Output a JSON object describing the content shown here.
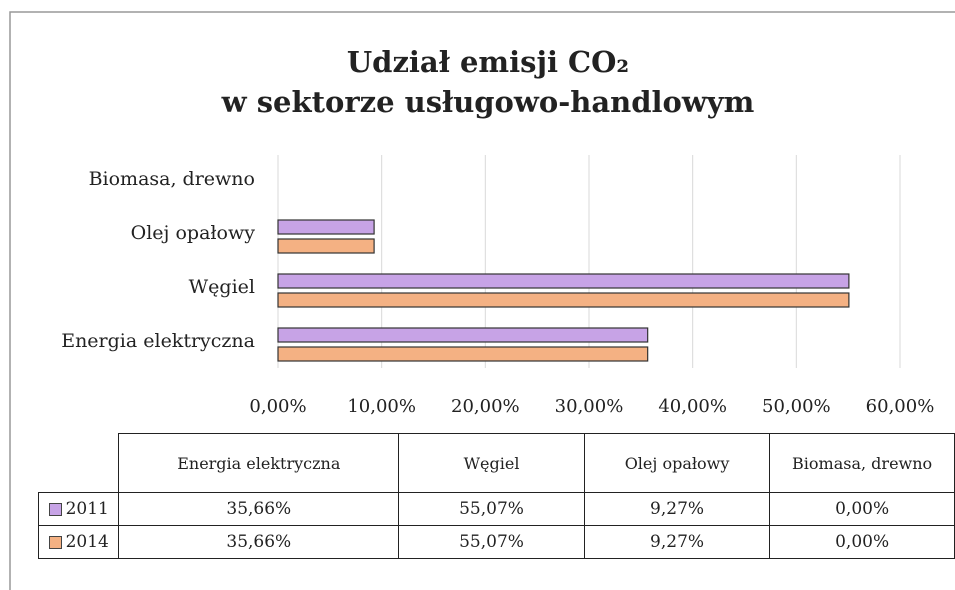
{
  "chart_data": {
    "type": "barh",
    "title": [
      "Udział emisji CO₂",
      "w sektorze usługowo-handlowym"
    ],
    "categories": [
      "Energia elektryczna",
      "Węgiel",
      "Olej opałowy",
      "Biomasa, drewno"
    ],
    "series": [
      {
        "name": "2011",
        "color": "#c7a3e6",
        "values": [
          35.66,
          55.07,
          9.27,
          0.0
        ],
        "value_labels": [
          "35,66%",
          "55,07%",
          "9,27%",
          "0,00%"
        ]
      },
      {
        "name": "2014",
        "color": "#f4b183",
        "values": [
          35.66,
          55.07,
          9.27,
          0.0
        ],
        "value_labels": [
          "35,66%",
          "55,07%",
          "9,27%",
          "0,00%"
        ]
      }
    ],
    "xlim": [
      0,
      60
    ],
    "xticks": [
      {
        "value": 0,
        "label": "0,00%"
      },
      {
        "value": 10,
        "label": "10,00%"
      },
      {
        "value": 20,
        "label": "20,00%"
      },
      {
        "value": 30,
        "label": "30,00%"
      },
      {
        "value": 40,
        "label": "40,00%"
      },
      {
        "value": 50,
        "label": "50,00%"
      },
      {
        "value": 60,
        "label": "60,00%"
      }
    ],
    "grid": true
  }
}
